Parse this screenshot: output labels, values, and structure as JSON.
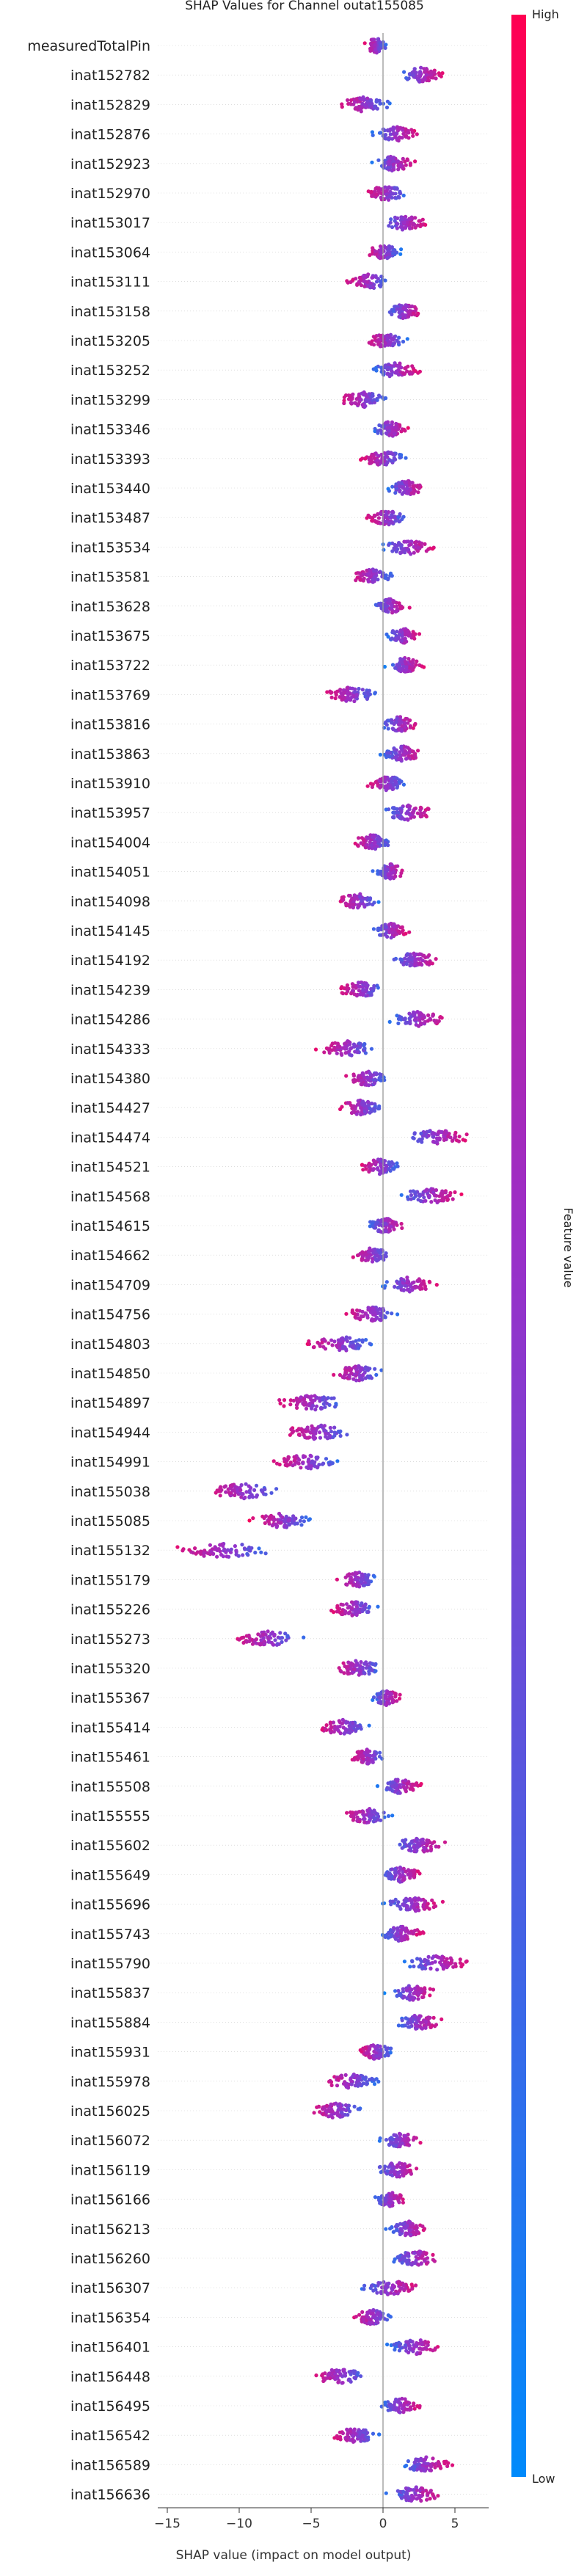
{
  "chart_data": {
    "type": "scatter",
    "subtype": "beeswarm",
    "title": "SHAP Values for Channel outat155085",
    "xlabel": "SHAP value (impact on model output)",
    "xlim": [
      -16,
      8
    ],
    "xticks": [
      -15,
      -10,
      -5,
      0,
      5
    ],
    "features": [
      "measuredTotalPin",
      "inat152782",
      "inat152829",
      "inat152876",
      "inat152923",
      "inat152970",
      "inat153017",
      "inat153064",
      "inat153111",
      "inat153158",
      "inat153205",
      "inat153252",
      "inat153299",
      "inat153346",
      "inat153393",
      "inat153440",
      "inat153487",
      "inat153534",
      "inat153581",
      "inat153628",
      "inat153675",
      "inat153722",
      "inat153769",
      "inat153816",
      "inat153863",
      "inat153910",
      "inat153957",
      "inat154004",
      "inat154051",
      "inat154098",
      "inat154145",
      "inat154192",
      "inat154239",
      "inat154286",
      "inat154333",
      "inat154380",
      "inat154427",
      "inat154474",
      "inat154521",
      "inat154568",
      "inat154615",
      "inat154662",
      "inat154709",
      "inat154756",
      "inat154803",
      "inat154850",
      "inat154897",
      "inat154944",
      "inat154991",
      "inat155038",
      "inat155085",
      "inat155132",
      "inat155179",
      "inat155226",
      "inat155273",
      "inat155320",
      "inat155367",
      "inat155414",
      "inat155461",
      "inat155508",
      "inat155555",
      "inat155602",
      "inat155649",
      "inat155696",
      "inat155743",
      "inat155790",
      "inat155837",
      "inat155884",
      "inat155931",
      "inat155978",
      "inat156025",
      "inat156072",
      "inat156119",
      "inat156166",
      "inat156213",
      "inat156260",
      "inat156307",
      "inat156354",
      "inat156401",
      "inat156448",
      "inat156495",
      "inat156542",
      "inat156589",
      "inat156636"
    ],
    "rows": [
      {
        "lo": -1.5,
        "hi": 0.5,
        "dir": 0
      },
      {
        "lo": 0.8,
        "hi": 4.5,
        "dir": 1
      },
      {
        "lo": -3.5,
        "hi": 1.0,
        "dir": 0
      },
      {
        "lo": -1.0,
        "hi": 2.8,
        "dir": 1
      },
      {
        "lo": -1.0,
        "hi": 2.5,
        "dir": 1
      },
      {
        "lo": -1.5,
        "hi": 2.0,
        "dir": 0
      },
      {
        "lo": -0.5,
        "hi": 3.5,
        "dir": 1
      },
      {
        "lo": -1.5,
        "hi": 1.5,
        "dir": 0
      },
      {
        "lo": -3.0,
        "hi": 1.0,
        "dir": 0
      },
      {
        "lo": 0.0,
        "hi": 3.0,
        "dir": 1
      },
      {
        "lo": -1.5,
        "hi": 2.0,
        "dir": 0
      },
      {
        "lo": -1.0,
        "hi": 2.8,
        "dir": 1
      },
      {
        "lo": -3.5,
        "hi": 0.8,
        "dir": 0
      },
      {
        "lo": -1.0,
        "hi": 2.0,
        "dir": 1
      },
      {
        "lo": -2.0,
        "hi": 2.0,
        "dir": 0
      },
      {
        "lo": 0.0,
        "hi": 3.2,
        "dir": 1
      },
      {
        "lo": -1.5,
        "hi": 2.0,
        "dir": 0
      },
      {
        "lo": -0.5,
        "hi": 4.0,
        "dir": 1
      },
      {
        "lo": -2.5,
        "hi": 1.0,
        "dir": 0
      },
      {
        "lo": -1.0,
        "hi": 2.0,
        "dir": 1
      },
      {
        "lo": 0.0,
        "hi": 2.8,
        "dir": 1
      },
      {
        "lo": 0.0,
        "hi": 3.0,
        "dir": 1
      },
      {
        "lo": -4.5,
        "hi": 0.0,
        "dir": 0
      },
      {
        "lo": -0.5,
        "hi": 2.8,
        "dir": 1
      },
      {
        "lo": -0.5,
        "hi": 3.2,
        "dir": 1
      },
      {
        "lo": -1.5,
        "hi": 2.0,
        "dir": 0
      },
      {
        "lo": -0.5,
        "hi": 4.0,
        "dir": 1
      },
      {
        "lo": -2.5,
        "hi": 1.0,
        "dir": 0
      },
      {
        "lo": -1.0,
        "hi": 2.0,
        "dir": 1
      },
      {
        "lo": -3.5,
        "hi": 0.0,
        "dir": 0
      },
      {
        "lo": -1.0,
        "hi": 2.0,
        "dir": 1
      },
      {
        "lo": 0.0,
        "hi": 4.5,
        "dir": 1
      },
      {
        "lo": -3.5,
        "hi": 0.5,
        "dir": 0
      },
      {
        "lo": 0.0,
        "hi": 5.0,
        "dir": 1
      },
      {
        "lo": -5.0,
        "hi": 0.0,
        "dir": 0
      },
      {
        "lo": -3.0,
        "hi": 0.8,
        "dir": 0
      },
      {
        "lo": -3.5,
        "hi": 0.5,
        "dir": 0
      },
      {
        "lo": 1.0,
        "hi": 6.5,
        "dir": 1
      },
      {
        "lo": -2.0,
        "hi": 1.5,
        "dir": 0
      },
      {
        "lo": 0.5,
        "hi": 6.0,
        "dir": 1
      },
      {
        "lo": -1.5,
        "hi": 2.0,
        "dir": 1
      },
      {
        "lo": -2.5,
        "hi": 1.0,
        "dir": 0
      },
      {
        "lo": -0.5,
        "hi": 4.0,
        "dir": 1
      },
      {
        "lo": -3.0,
        "hi": 1.5,
        "dir": 0
      },
      {
        "lo": -6.0,
        "hi": 0.0,
        "dir": 0
      },
      {
        "lo": -4.0,
        "hi": 0.5,
        "dir": 0
      },
      {
        "lo": -8.0,
        "hi": -2.0,
        "dir": 0
      },
      {
        "lo": -7.5,
        "hi": -1.5,
        "dir": 0
      },
      {
        "lo": -8.0,
        "hi": -2.5,
        "dir": 0
      },
      {
        "lo": -13.0,
        "hi": -6.5,
        "dir": 0
      },
      {
        "lo": -9.5,
        "hi": -4.5,
        "dir": 0
      },
      {
        "lo": -15.5,
        "hi": -7.0,
        "dir": 0
      },
      {
        "lo": -3.5,
        "hi": 0.0,
        "dir": 0
      },
      {
        "lo": -4.0,
        "hi": 0.0,
        "dir": 0
      },
      {
        "lo": -11.0,
        "hi": -5.0,
        "dir": 0
      },
      {
        "lo": -4.0,
        "hi": 0.5,
        "dir": 0
      },
      {
        "lo": -1.0,
        "hi": 1.5,
        "dir": 1
      },
      {
        "lo": -5.0,
        "hi": -0.5,
        "dir": 0
      },
      {
        "lo": -2.5,
        "hi": 0.5,
        "dir": 0
      },
      {
        "lo": -0.5,
        "hi": 3.0,
        "dir": 1
      },
      {
        "lo": -3.0,
        "hi": 0.8,
        "dir": 0
      },
      {
        "lo": 0.0,
        "hi": 5.0,
        "dir": 1
      },
      {
        "lo": -0.5,
        "hi": 3.0,
        "dir": 1
      },
      {
        "lo": -0.5,
        "hi": 4.5,
        "dir": 1
      },
      {
        "lo": -0.5,
        "hi": 3.0,
        "dir": 1
      },
      {
        "lo": 1.0,
        "hi": 6.5,
        "dir": 1
      },
      {
        "lo": 0.0,
        "hi": 4.0,
        "dir": 1
      },
      {
        "lo": 0.5,
        "hi": 4.5,
        "dir": 1
      },
      {
        "lo": -2.0,
        "hi": 1.0,
        "dir": 0
      },
      {
        "lo": -4.5,
        "hi": 0.0,
        "dir": 0
      },
      {
        "lo": -5.5,
        "hi": -1.0,
        "dir": 0
      },
      {
        "lo": -0.5,
        "hi": 3.0,
        "dir": 1
      },
      {
        "lo": -1.0,
        "hi": 3.0,
        "dir": 1
      },
      {
        "lo": -1.0,
        "hi": 2.0,
        "dir": 1
      },
      {
        "lo": 0.0,
        "hi": 3.5,
        "dir": 1
      },
      {
        "lo": 0.0,
        "hi": 4.5,
        "dir": 1
      },
      {
        "lo": -2.0,
        "hi": 3.0,
        "dir": 1
      },
      {
        "lo": -2.5,
        "hi": 1.0,
        "dir": 0
      },
      {
        "lo": 0.0,
        "hi": 4.5,
        "dir": 1
      },
      {
        "lo": -5.5,
        "hi": -0.5,
        "dir": 0
      },
      {
        "lo": -0.5,
        "hi": 3.0,
        "dir": 1
      },
      {
        "lo": -4.0,
        "hi": 0.0,
        "dir": 0
      },
      {
        "lo": 1.0,
        "hi": 5.0,
        "dir": 1
      },
      {
        "lo": 0.0,
        "hi": 4.5,
        "dir": 1
      }
    ],
    "colorbar": {
      "high_label": "High",
      "low_label": "Low",
      "label": "Feature value",
      "colors": {
        "low": "#008afb",
        "high": "#ff0052"
      }
    },
    "grid": false,
    "legend": "colorbar-right"
  }
}
